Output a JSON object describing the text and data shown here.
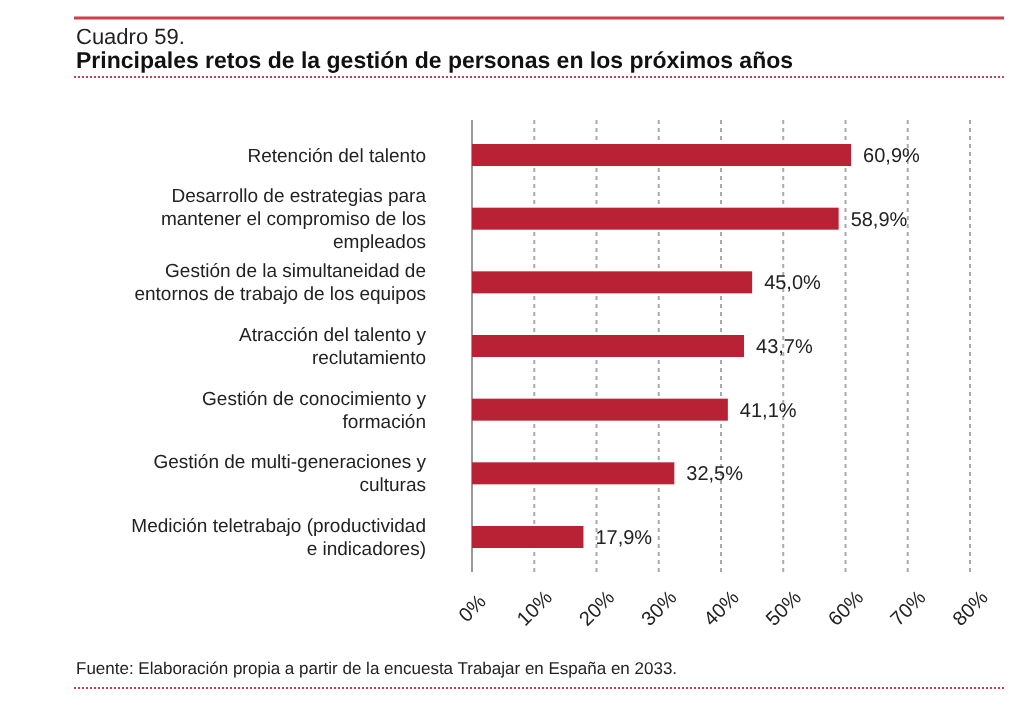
{
  "chart_data": {
    "type": "bar",
    "orientation": "horizontal",
    "title": "Cuadro 59.",
    "subtitle": "Principales retos de la gestión de personas en los próximos años",
    "categories": [
      "Retención del talento",
      "Desarrollo de estrategias para mantener el compromiso de los empleados",
      "Gestión de la simultaneidad de entornos de trabajo de los equipos",
      "Atracción del talento y reclutamiento",
      "Gestión de conocimiento y formación",
      "Gestión de multi-generaciones y culturas",
      "Medición teletrabajo (productividad e indicadores)"
    ],
    "values": [
      60.9,
      58.9,
      45.0,
      43.7,
      41.1,
      32.5,
      17.9
    ],
    "value_labels": [
      "60,9%",
      "58,9%",
      "45,0%",
      "43,7%",
      "41,1%",
      "32,5%",
      "17,9%"
    ],
    "color": "#b82234",
    "xlim": [
      0,
      80
    ],
    "xticks": [
      {
        "value": 0,
        "label": "0%"
      },
      {
        "value": 10,
        "label": "10%"
      },
      {
        "value": 20,
        "label": "20%"
      },
      {
        "value": 30,
        "label": "30%"
      },
      {
        "value": 40,
        "label": "40%"
      },
      {
        "value": 50,
        "label": "50%"
      },
      {
        "value": 60,
        "label": "60%"
      },
      {
        "value": 70,
        "label": "70%"
      },
      {
        "value": 80,
        "label": "80%"
      }
    ],
    "grid": "x",
    "annotations": [
      "Fuente: Elaboración propia a partir de la encuesta Trabajar en España en 2033."
    ]
  }
}
